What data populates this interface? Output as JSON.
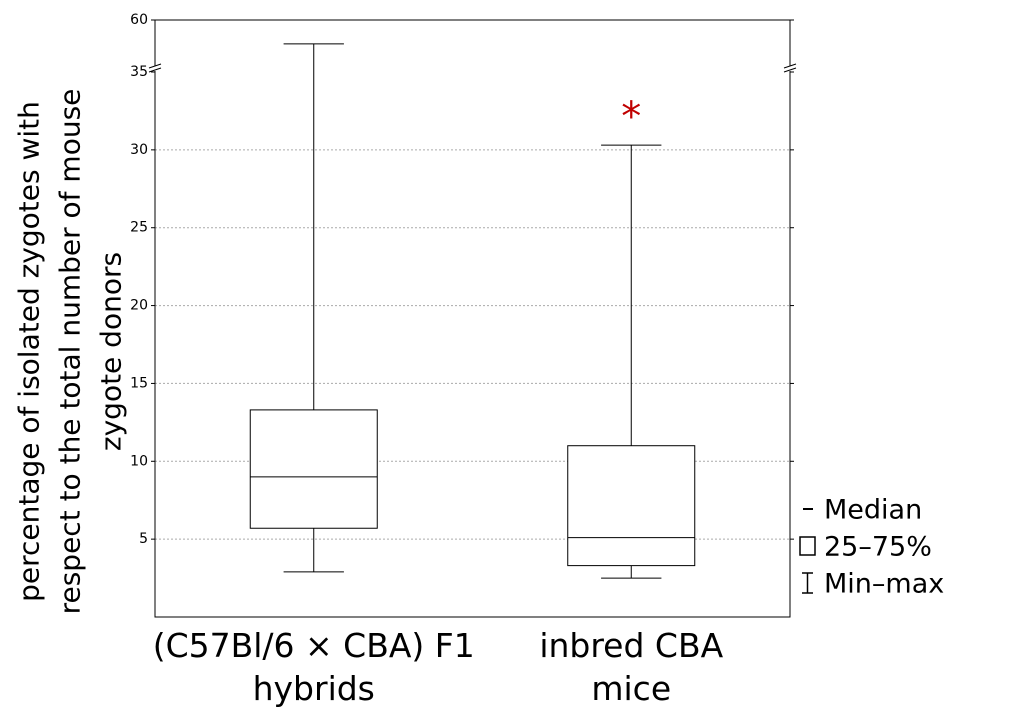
{
  "chart_data": {
    "type": "box",
    "y_label": "percentage of isolated zygotes with respect to the total number of mouse zygote donors",
    "categories": [
      "(C57Bl/6 × CBA) F1 hybrids",
      "inbred CBA mice"
    ],
    "series": [
      {
        "name": "(C57Bl/6 × CBA) F1 hybrids",
        "min": 2.9,
        "q1": 5.7,
        "median": 9,
        "q3": 13.3,
        "max": 48.5
      },
      {
        "name": "inbred CBA mice",
        "min": 2.5,
        "q1": 3.3,
        "median": 5.1,
        "q3": 11,
        "max": 30.3
      }
    ],
    "ylim": [
      0,
      60
    ],
    "ybreak": 35,
    "yticks": [
      5,
      10,
      15,
      20,
      25,
      30,
      35,
      60
    ],
    "grid": true,
    "color": "#000000",
    "annotations": [
      {
        "text": "*",
        "category": 1,
        "y": 32.5,
        "color": "#c00000"
      }
    ],
    "legend": [
      "Median",
      "25–75%",
      "Min–max"
    ]
  }
}
